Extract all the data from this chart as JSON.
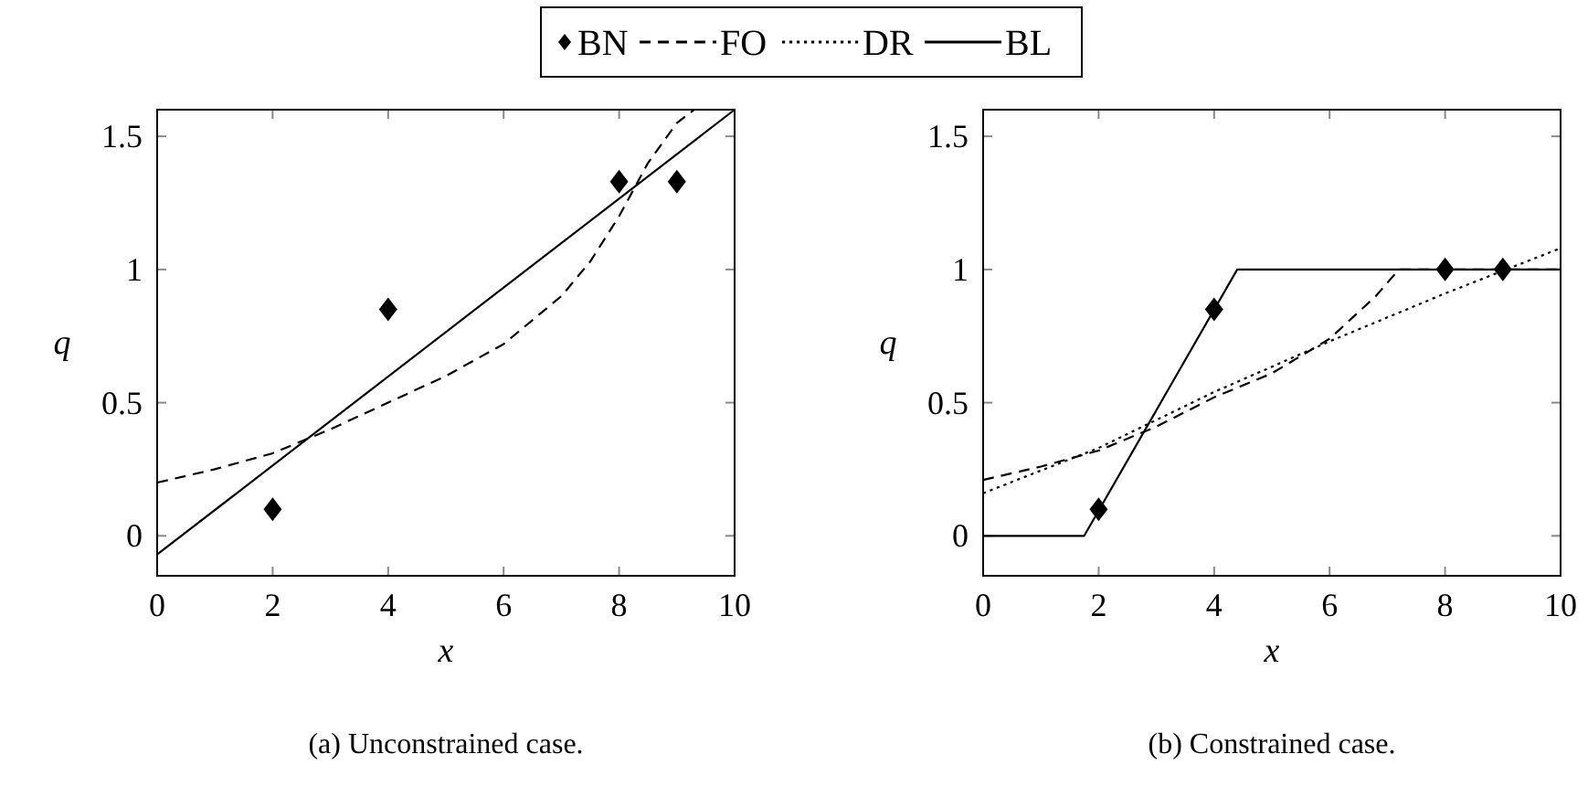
{
  "chart_data": [
    {
      "type": "line",
      "xlabel": "x",
      "ylabel": "q",
      "xlim": [
        0,
        10
      ],
      "ylim": [
        -0.15,
        1.6
      ],
      "xticks": [
        0,
        2,
        4,
        6,
        8,
        10
      ],
      "yticks": [
        0,
        0.5,
        1,
        1.5
      ],
      "grid": false,
      "annotations": [
        "(a) Unconstrained case."
      ],
      "series": [
        {
          "type": "scatter",
          "marker": "diamond",
          "color": "#000000",
          "x": [
            2,
            4,
            8,
            9
          ],
          "values": [
            0.1,
            0.85,
            1.33,
            1.33
          ]
        },
        {
          "type": "line",
          "line_style": "dashed",
          "color": "#000000",
          "x": [
            0,
            1,
            2,
            3,
            4,
            5,
            6,
            7,
            7.5,
            8,
            8.5,
            9,
            9.3
          ],
          "values": [
            0.2,
            0.25,
            0.31,
            0.4,
            0.5,
            0.6,
            0.72,
            0.9,
            1.03,
            1.2,
            1.4,
            1.55,
            1.6
          ]
        },
        {
          "type": "line",
          "line_style": "solid",
          "color": "#000000",
          "x": [
            0,
            10
          ],
          "values": [
            -0.07,
            1.6
          ]
        }
      ]
    },
    {
      "type": "line",
      "xlabel": "x",
      "ylabel": "q",
      "xlim": [
        0,
        10
      ],
      "ylim": [
        -0.15,
        1.6
      ],
      "xticks": [
        0,
        2,
        4,
        6,
        8,
        10
      ],
      "yticks": [
        0,
        0.5,
        1,
        1.5
      ],
      "grid": false,
      "legend": "top",
      "annotations": [
        "(b) Constrained case."
      ],
      "series": [
        {
          "name": "BN",
          "type": "scatter",
          "marker": "diamond",
          "color": "#000000",
          "x": [
            2,
            4,
            8,
            9
          ],
          "values": [
            0.1,
            0.85,
            1,
            1
          ]
        },
        {
          "name": "FO",
          "type": "line",
          "line_style": "dashed",
          "color": "#000000",
          "x": [
            0,
            1,
            2,
            3,
            4,
            5,
            6,
            6.8,
            7.2,
            10
          ],
          "values": [
            0.21,
            0.26,
            0.32,
            0.41,
            0.52,
            0.61,
            0.74,
            0.9,
            1,
            1
          ]
        },
        {
          "name": "DR",
          "type": "line",
          "line_style": "dotted",
          "color": "#000000",
          "x": [
            0,
            2,
            4,
            6,
            8,
            10
          ],
          "values": [
            0.16,
            0.33,
            0.54,
            0.73,
            0.91,
            1.08
          ]
        },
        {
          "name": "BL",
          "type": "line",
          "line_style": "solid",
          "color": "#000000",
          "x": [
            0,
            1.75,
            4.4,
            10
          ],
          "values": [
            0,
            0,
            1,
            1
          ]
        }
      ]
    }
  ]
}
